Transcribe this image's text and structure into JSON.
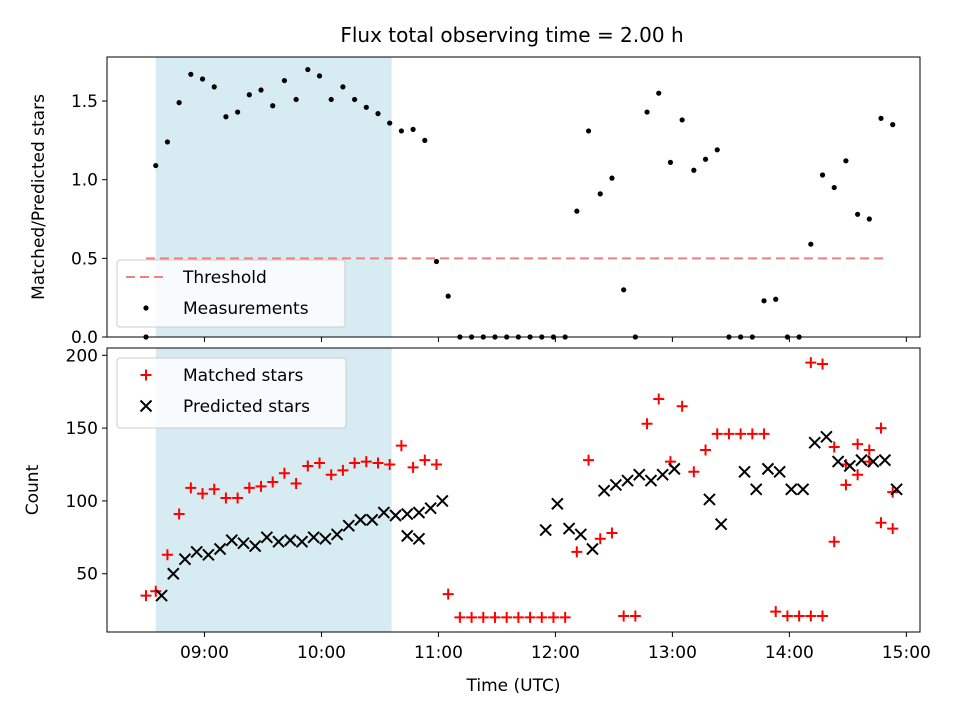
{
  "title": "Flux total observing time = 2.00 h",
  "colors": {
    "shade": "#add8e6",
    "threshold": "#f08080",
    "matched": "#ff0000",
    "predicted": "#000000",
    "measurement": "#000000"
  },
  "chart_data": [
    {
      "type": "scatter",
      "ylabel": "Matched/Predicted stars",
      "ylim": [
        0,
        1.78
      ],
      "xlim": [
        "08:10",
        "15:07"
      ],
      "yticks": [
        "0.0",
        "0.5",
        "1.0",
        "1.5"
      ],
      "ytick_values": [
        0,
        0.5,
        1.0,
        1.5
      ],
      "shaded_span": [
        "08:35",
        "10:36"
      ],
      "legend_position": "lower-left",
      "series": [
        {
          "name": "Threshold",
          "kind": "dashed-line",
          "x": [
            "08:30",
            "14:50"
          ],
          "y": [
            0.5,
            0.5
          ]
        },
        {
          "name": "Measurements",
          "kind": "points",
          "x": [
            "08:30",
            "08:35",
            "08:41",
            "08:47",
            "08:53",
            "08:59",
            "09:05",
            "09:11",
            "09:17",
            "09:23",
            "09:29",
            "09:35",
            "09:41",
            "09:47",
            "09:53",
            "09:59",
            "10:05",
            "10:11",
            "10:17",
            "10:23",
            "10:29",
            "10:35",
            "10:41",
            "10:47",
            "10:53",
            "10:59",
            "11:05",
            "11:11",
            "11:17",
            "11:23",
            "11:29",
            "11:35",
            "11:41",
            "11:47",
            "11:53",
            "11:59",
            "12:05",
            "12:11",
            "12:17",
            "12:23",
            "12:29",
            "12:35",
            "12:41",
            "12:47",
            "12:53",
            "12:59",
            "13:05",
            "13:11",
            "13:17",
            "13:23",
            "13:29",
            "13:35",
            "13:41",
            "13:47",
            "13:53",
            "13:59",
            "14:05",
            "14:11",
            "14:17",
            "14:23",
            "14:29",
            "14:35",
            "14:41",
            "14:47",
            "14:53"
          ],
          "y": [
            0.0,
            1.09,
            1.24,
            1.49,
            1.67,
            1.64,
            1.59,
            1.4,
            1.43,
            1.54,
            1.57,
            1.47,
            1.63,
            1.51,
            1.7,
            1.66,
            1.51,
            1.59,
            1.51,
            1.46,
            1.42,
            1.36,
            1.31,
            1.32,
            1.25,
            0.48,
            0.26,
            0.0,
            0.0,
            0.0,
            0.0,
            0.0,
            0.0,
            0.0,
            0.0,
            0.0,
            0.0,
            0.8,
            1.31,
            0.91,
            1.01,
            0.3,
            0.0,
            1.43,
            1.55,
            1.11,
            1.38,
            1.06,
            1.13,
            1.19,
            0.0,
            0.0,
            0.0,
            0.23,
            0.24,
            0.0,
            0.0,
            0.59,
            1.03,
            0.95,
            1.12,
            0.78,
            0.75,
            1.39,
            1.35
          ]
        }
      ]
    },
    {
      "type": "scatter",
      "ylabel": "Count",
      "xlabel": "Time (UTC)",
      "ylim": [
        10,
        205
      ],
      "xlim": [
        "08:10",
        "15:07"
      ],
      "yticks": [
        "50",
        "100",
        "150",
        "200"
      ],
      "ytick_values": [
        50,
        100,
        150,
        200
      ],
      "xticks": [
        "09:00",
        "10:00",
        "11:00",
        "12:00",
        "13:00",
        "14:00",
        "15:00"
      ],
      "shaded_span": [
        "08:35",
        "10:36"
      ],
      "legend_position": "upper-left",
      "series": [
        {
          "name": "Matched stars",
          "marker": "plus",
          "x": [
            "08:30",
            "08:35",
            "08:41",
            "08:47",
            "08:53",
            "08:59",
            "09:05",
            "09:11",
            "09:17",
            "09:23",
            "09:29",
            "09:35",
            "09:41",
            "09:47",
            "09:53",
            "09:59",
            "10:05",
            "10:11",
            "10:17",
            "10:23",
            "10:29",
            "10:35",
            "10:41",
            "10:47",
            "10:53",
            "10:59",
            "11:05",
            "11:11",
            "11:17",
            "11:23",
            "11:29",
            "11:35",
            "11:41",
            "11:47",
            "11:53",
            "11:59",
            "12:05",
            "12:11",
            "12:17",
            "12:23",
            "12:29",
            "12:35",
            "12:41",
            "12:47",
            "12:53",
            "12:59",
            "13:05",
            "13:11",
            "13:17",
            "13:23",
            "13:29",
            "13:35",
            "13:41",
            "13:47",
            "13:53",
            "13:59",
            "14:05",
            "14:11",
            "14:17",
            "14:23",
            "14:29",
            "14:35",
            "14:41",
            "14:47",
            "14:53"
          ],
          "y": [
            35,
            38,
            63,
            91,
            109,
            105,
            108,
            102,
            102,
            109,
            110,
            113,
            119,
            112,
            124,
            126,
            118,
            121,
            126,
            127,
            126,
            125,
            138,
            123,
            128,
            125,
            36,
            20,
            20,
            20,
            20,
            20,
            20,
            20,
            20,
            20,
            20,
            65,
            128,
            74,
            78,
            21,
            21,
            153,
            170,
            127,
            165,
            120,
            135,
            146,
            146,
            146,
            146,
            146,
            24,
            21,
            21,
            21,
            21,
            72,
            111,
            118,
            135,
            85,
            81
          ],
          "x2": [
            "14:11",
            "14:17",
            "14:23",
            "14:29",
            "14:35",
            "14:41",
            "14:47",
            "14:53"
          ],
          "y2": [
            195,
            194,
            137,
            125,
            139,
            127,
            150,
            106
          ]
        },
        {
          "name": "Predicted stars",
          "marker": "x",
          "x": [
            "08:38",
            "08:44",
            "08:50",
            "08:56",
            "09:02",
            "09:08",
            "09:14",
            "09:20",
            "09:26",
            "09:32",
            "09:38",
            "09:44",
            "09:50",
            "09:56",
            "10:02",
            "10:08",
            "10:14",
            "10:20",
            "10:26",
            "10:32",
            "10:38",
            "10:44",
            "10:50",
            "10:56",
            "11:02"
          ],
          "y": [
            35,
            50,
            60,
            65,
            63,
            67,
            73,
            71,
            69,
            75,
            72,
            73,
            72,
            75,
            74,
            77,
            83,
            87,
            87,
            92,
            90,
            91,
            92,
            95,
            100
          ],
          "x2": [
            "10:44",
            "10:50",
            "11:55",
            "12:01",
            "12:07",
            "12:13",
            "12:19",
            "12:25",
            "12:31",
            "12:37",
            "12:43",
            "12:49",
            "12:55",
            "13:01",
            "13:19",
            "13:25",
            "13:37",
            "13:43",
            "13:49",
            "13:55",
            "14:01",
            "14:07",
            "14:13",
            "14:19",
            "14:25",
            "14:31",
            "14:37",
            "14:43",
            "14:49",
            "14:55"
          ],
          "y2": [
            76,
            74,
            80,
            98,
            81,
            77,
            67,
            107,
            111,
            114,
            118,
            114,
            118,
            122,
            101,
            84,
            120,
            108,
            122,
            120,
            108,
            108,
            140,
            144,
            127,
            124,
            128,
            127,
            128,
            108
          ]
        }
      ]
    }
  ]
}
